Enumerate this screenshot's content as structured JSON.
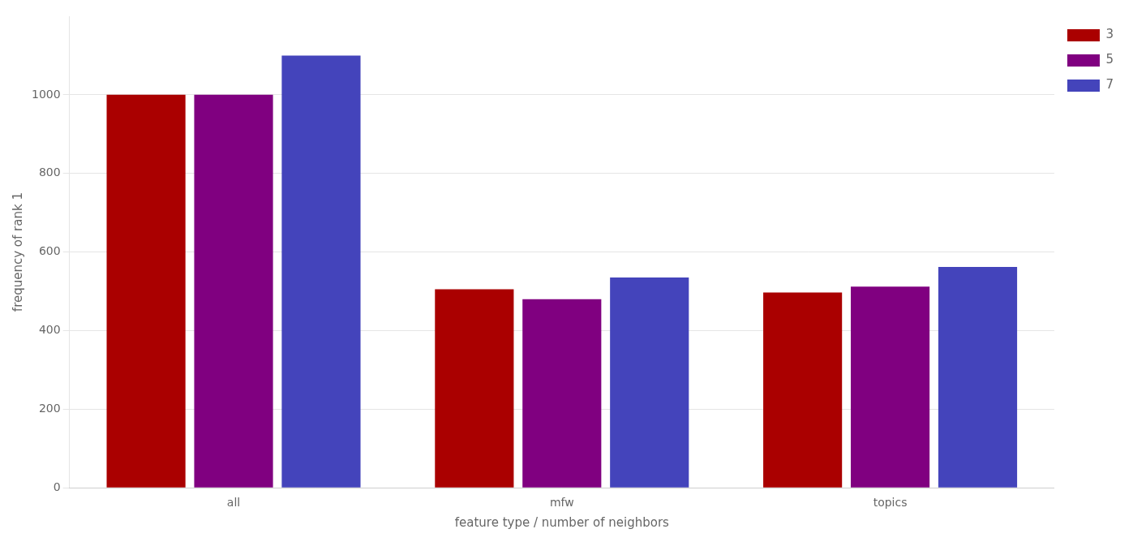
{
  "chart_data": {
    "type": "bar",
    "categories": [
      "all",
      "mfw",
      "topics"
    ],
    "series": [
      {
        "name": "3",
        "color": "#AA0000",
        "values": [
          1000,
          505,
          497
        ]
      },
      {
        "name": "5",
        "color": "#800080",
        "values": [
          1000,
          480,
          512
        ]
      },
      {
        "name": "7",
        "color": "#4444BB",
        "values": [
          1100,
          535,
          562
        ]
      }
    ],
    "xlabel": "feature type / number of neighbors",
    "ylabel": "frequency of rank 1",
    "ylim": [
      0,
      1200
    ],
    "yticks": [
      0,
      200,
      400,
      600,
      800,
      1000
    ],
    "grid": true,
    "legend": "right"
  }
}
